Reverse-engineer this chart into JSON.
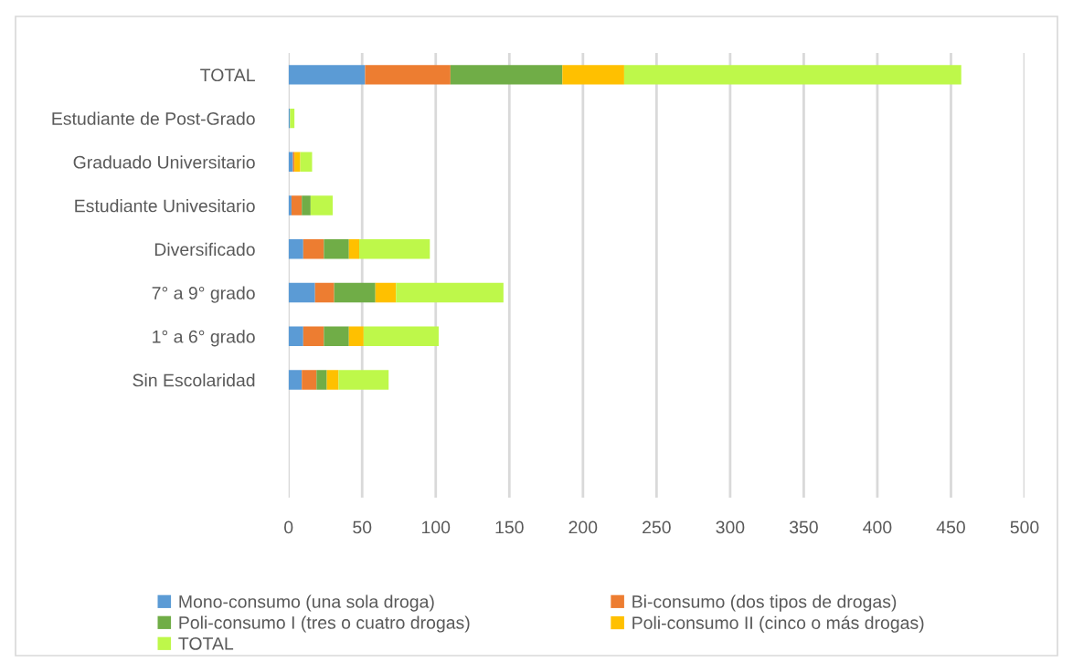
{
  "chart_data": {
    "type": "bar",
    "orientation": "horizontal",
    "stacked": true,
    "categories": [
      "TOTAL",
      "Estudiante de Post-Grado",
      "Graduado Universitario",
      "Estudiante Univesitario",
      "Diversificado",
      "7° a 9° grado",
      "1° a 6° grado",
      "Sin Escolaridad"
    ],
    "series": [
      {
        "name": "Mono-consumo (una sola droga)",
        "color": "#5b9bd5",
        "values": [
          52,
          1,
          3,
          2,
          10,
          18,
          10,
          9
        ]
      },
      {
        "name": "Bi-consumo (dos tipos de drogas)",
        "color": "#ed7d31",
        "values": [
          58,
          0,
          1,
          7,
          14,
          13,
          14,
          10
        ]
      },
      {
        "name": "Poli-consumo I (tres o cuatro drogas)",
        "color": "#70ad47",
        "values": [
          76,
          0,
          0,
          6,
          17,
          28,
          17,
          7
        ]
      },
      {
        "name": "Poli-consumo II (cinco o más drogas)",
        "color": "#ffc000",
        "values": [
          42,
          0,
          4,
          0,
          7,
          14,
          10,
          8
        ]
      },
      {
        "name": "TOTAL",
        "color": "#bef84a",
        "values": [
          229,
          3,
          8,
          15,
          48,
          73,
          51,
          34
        ]
      }
    ],
    "xlim": [
      0,
      500
    ],
    "xticks": [
      0,
      50,
      100,
      150,
      200,
      250,
      300,
      350,
      400,
      450,
      500
    ],
    "grid": "x",
    "legend": "bottom"
  }
}
